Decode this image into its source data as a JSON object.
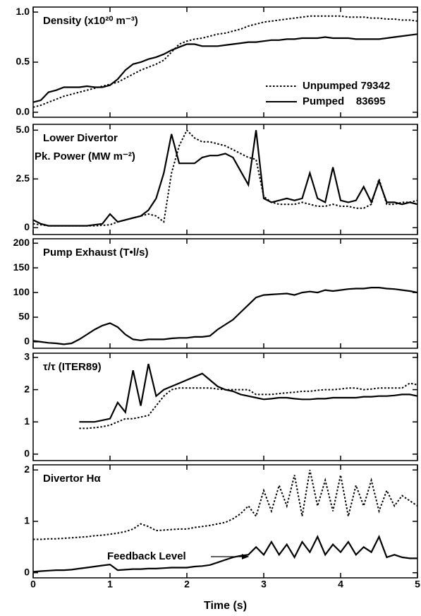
{
  "chart_data": [
    {
      "type": "line",
      "title": "Density (x10²⁰ m⁻³)",
      "legend": "lower right",
      "xlim": [
        0,
        5
      ],
      "xticks": [
        0,
        1,
        2,
        3,
        4,
        5
      ],
      "ylim": [
        -0.05,
        1.05
      ],
      "yticks": [
        {
          "value": 0,
          "label": "0.0"
        },
        {
          "value": 0.5,
          "label": "0.5"
        },
        {
          "value": 1,
          "label": "1.0"
        }
      ],
      "x": [
        0,
        0.1,
        0.2,
        0.3,
        0.4,
        0.5,
        0.6,
        0.7,
        0.8,
        0.9,
        1,
        1.1,
        1.2,
        1.3,
        1.4,
        1.5,
        1.6,
        1.7,
        1.8,
        1.9,
        2,
        2.1,
        2.2,
        2.3,
        2.4,
        2.5,
        2.6,
        2.7,
        2.8,
        2.9,
        3,
        3.1,
        3.2,
        3.3,
        3.4,
        3.5,
        3.6,
        3.7,
        3.8,
        3.9,
        4,
        4.1,
        4.2,
        4.3,
        4.4,
        4.5,
        4.6,
        4.7,
        4.8,
        4.9,
        5
      ],
      "series": [
        {
          "name": "Unpumped 79342",
          "color": "#000000",
          "style": "dotted",
          "values": [
            0.05,
            0.07,
            0.1,
            0.13,
            0.16,
            0.18,
            0.2,
            0.22,
            0.24,
            0.26,
            0.28,
            0.3,
            0.34,
            0.38,
            0.42,
            0.45,
            0.48,
            0.52,
            0.6,
            0.68,
            0.71,
            0.73,
            0.74,
            0.76,
            0.78,
            0.79,
            0.81,
            0.83,
            0.86,
            0.88,
            0.9,
            0.91,
            0.92,
            0.93,
            0.94,
            0.95,
            0.96,
            0.96,
            0.96,
            0.96,
            0.96,
            0.95,
            0.95,
            0.95,
            0.94,
            0.94,
            0.93,
            0.93,
            0.92,
            0.92,
            0.91
          ]
        },
        {
          "name": "Pumped    83695",
          "color": "#000000",
          "style": "solid",
          "values": [
            0.1,
            0.12,
            0.2,
            0.22,
            0.25,
            0.25,
            0.25,
            0.26,
            0.25,
            0.25,
            0.27,
            0.33,
            0.42,
            0.48,
            0.5,
            0.53,
            0.55,
            0.58,
            0.62,
            0.65,
            0.68,
            0.68,
            0.66,
            0.66,
            0.66,
            0.67,
            0.68,
            0.69,
            0.7,
            0.7,
            0.71,
            0.72,
            0.72,
            0.73,
            0.73,
            0.74,
            0.74,
            0.74,
            0.75,
            0.74,
            0.74,
            0.74,
            0.73,
            0.73,
            0.73,
            0.73,
            0.74,
            0.75,
            0.76,
            0.77,
            0.78
          ]
        }
      ]
    },
    {
      "type": "line",
      "title": "Lower Divertor",
      "subtitle": "Pk. Power (MW m⁻²)",
      "xlim": [
        0,
        5
      ],
      "xticks": [
        0,
        1,
        2,
        3,
        4,
        5
      ],
      "ylim": [
        -0.35,
        5.3
      ],
      "yticks": [
        0,
        2.5,
        {
          "value": 5,
          "label": "5.0"
        }
      ],
      "x": [
        0,
        0.1,
        0.2,
        0.3,
        0.4,
        0.5,
        0.6,
        0.7,
        0.8,
        0.9,
        1,
        1.1,
        1.2,
        1.3,
        1.4,
        1.5,
        1.6,
        1.7,
        1.8,
        1.9,
        2,
        2.1,
        2.2,
        2.3,
        2.4,
        2.5,
        2.6,
        2.7,
        2.8,
        2.9,
        3,
        3.1,
        3.2,
        3.3,
        3.4,
        3.5,
        3.6,
        3.7,
        3.8,
        3.9,
        4,
        4.1,
        4.2,
        4.3,
        4.4,
        4.5,
        4.6,
        4.7,
        4.8,
        4.9,
        5
      ],
      "series": [
        {
          "color": "#000000",
          "style": "dotted",
          "values": [
            0.2,
            0.15,
            0.1,
            0.1,
            0.1,
            0.1,
            0.1,
            0.1,
            0.1,
            0.12,
            0.15,
            0.3,
            0.4,
            0.5,
            0.6,
            0.7,
            0.6,
            0.3,
            2.8,
            4.2,
            5.0,
            4.6,
            4.4,
            4.4,
            4.3,
            4.2,
            4.0,
            3.8,
            3.6,
            3.5,
            1.6,
            1.3,
            1.2,
            1.2,
            1.2,
            1.3,
            1.2,
            1.1,
            1.1,
            1.2,
            1.1,
            1.1,
            1.0,
            1.0,
            1.2,
            2.5,
            1.2,
            1.2,
            1.3,
            1.3,
            1.4
          ]
        },
        {
          "color": "#000000",
          "style": "solid",
          "values": [
            0.4,
            0.2,
            0.1,
            0.1,
            0.1,
            0.1,
            0.1,
            0.1,
            0.15,
            0.2,
            0.7,
            0.3,
            0.4,
            0.5,
            0.6,
            0.9,
            1.5,
            2.8,
            4.8,
            3.3,
            3.3,
            3.3,
            3.6,
            3.7,
            3.7,
            3.8,
            3.6,
            2.9,
            2.2,
            5.0,
            1.5,
            1.3,
            1.4,
            1.5,
            1.4,
            1.5,
            2.8,
            1.5,
            1.3,
            3.1,
            1.4,
            1.3,
            1.4,
            2.1,
            1.3,
            2.4,
            1.3,
            1.3,
            1.2,
            1.3,
            1.2
          ]
        }
      ]
    },
    {
      "type": "line",
      "title": "Pump Exhaust (T•l/s)",
      "xlim": [
        0,
        5
      ],
      "xticks": [
        0,
        1,
        2,
        3,
        4,
        5
      ],
      "ylim": [
        -13,
        209
      ],
      "yticks": [
        0,
        50,
        100,
        150,
        200
      ],
      "x": [
        0,
        0.1,
        0.2,
        0.3,
        0.4,
        0.5,
        0.6,
        0.7,
        0.8,
        0.9,
        1,
        1.1,
        1.2,
        1.3,
        1.4,
        1.5,
        1.6,
        1.7,
        1.8,
        1.9,
        2,
        2.1,
        2.2,
        2.3,
        2.4,
        2.5,
        2.6,
        2.7,
        2.8,
        2.9,
        3,
        3.1,
        3.2,
        3.3,
        3.4,
        3.5,
        3.6,
        3.7,
        3.8,
        3.9,
        4,
        4.1,
        4.2,
        4.3,
        4.4,
        4.5,
        4.6,
        4.7,
        4.8,
        4.9,
        5
      ],
      "series": [
        {
          "color": "#000000",
          "style": "solid",
          "values": [
            2,
            0,
            -2,
            -3,
            -5,
            -3,
            5,
            15,
            25,
            33,
            38,
            30,
            15,
            5,
            3,
            5,
            5,
            5,
            7,
            8,
            8,
            10,
            10,
            12,
            25,
            35,
            45,
            60,
            75,
            90,
            95,
            96,
            97,
            98,
            95,
            100,
            102,
            100,
            105,
            103,
            105,
            107,
            108,
            108,
            110,
            110,
            108,
            107,
            105,
            103,
            100
          ]
        }
      ]
    },
    {
      "type": "line",
      "title": "τ/τ (ITER89)",
      "xlim": [
        0,
        5
      ],
      "xticks": [
        0,
        1,
        2,
        3,
        4,
        5
      ],
      "ylim": [
        -0.2,
        3.13
      ],
      "yticks": [
        0,
        1,
        2,
        3
      ],
      "x": [
        0,
        0.1,
        0.2,
        0.3,
        0.4,
        0.5,
        0.6,
        0.7,
        0.8,
        0.9,
        1,
        1.1,
        1.2,
        1.3,
        1.4,
        1.5,
        1.6,
        1.7,
        1.8,
        1.9,
        2,
        2.1,
        2.2,
        2.3,
        2.4,
        2.5,
        2.6,
        2.7,
        2.8,
        2.9,
        3,
        3.1,
        3.2,
        3.3,
        3.4,
        3.5,
        3.6,
        3.7,
        3.8,
        3.9,
        4,
        4.1,
        4.2,
        4.3,
        4.4,
        4.5,
        4.6,
        4.7,
        4.8,
        4.9,
        5
      ],
      "series": [
        {
          "color": "#000000",
          "style": "dotted",
          "values": [
            null,
            null,
            null,
            null,
            null,
            null,
            0.8,
            0.8,
            0.82,
            0.85,
            0.9,
            1.0,
            1.1,
            1.1,
            1.15,
            1.2,
            1.5,
            1.8,
            2.0,
            2.05,
            2.05,
            2.05,
            2.05,
            2.05,
            2.02,
            2.0,
            2.0,
            2.0,
            2.0,
            1.85,
            1.85,
            1.85,
            1.88,
            1.9,
            1.92,
            1.95,
            1.95,
            1.98,
            2.0,
            2.0,
            2.02,
            2.05,
            2.05,
            2.0,
            2.02,
            2.05,
            2.05,
            2.05,
            2.05,
            2.2,
            2.15
          ]
        },
        {
          "color": "#000000",
          "style": "solid",
          "values": [
            null,
            null,
            null,
            null,
            null,
            null,
            1.0,
            1.0,
            1.0,
            1.05,
            1.1,
            1.6,
            1.3,
            2.6,
            1.5,
            2.8,
            1.8,
            2.0,
            2.1,
            2.2,
            2.3,
            2.4,
            2.5,
            2.3,
            2.1,
            2.0,
            1.95,
            1.85,
            1.8,
            1.75,
            1.7,
            1.72,
            1.75,
            1.75,
            1.72,
            1.7,
            1.7,
            1.72,
            1.72,
            1.75,
            1.75,
            1.75,
            1.75,
            1.78,
            1.78,
            1.8,
            1.8,
            1.82,
            1.85,
            1.85,
            1.8
          ]
        }
      ]
    },
    {
      "type": "line",
      "title": "Divertor Hα",
      "annotation": "Feedback Level",
      "xlabel": "Time (s)",
      "xlim": [
        0,
        5
      ],
      "xticks": [
        0,
        1,
        2,
        3,
        4,
        5
      ],
      "ylim": [
        -0.1,
        2.1
      ],
      "yticks": [
        0,
        1,
        2
      ],
      "x": [
        0,
        0.1,
        0.2,
        0.3,
        0.4,
        0.5,
        0.6,
        0.7,
        0.8,
        0.9,
        1,
        1.1,
        1.2,
        1.3,
        1.4,
        1.5,
        1.6,
        1.7,
        1.8,
        1.9,
        2,
        2.1,
        2.2,
        2.3,
        2.4,
        2.5,
        2.6,
        2.7,
        2.8,
        2.9,
        3,
        3.1,
        3.2,
        3.3,
        3.4,
        3.5,
        3.6,
        3.7,
        3.8,
        3.9,
        4,
        4.1,
        4.2,
        4.3,
        4.4,
        4.5,
        4.6,
        4.7,
        4.8,
        4.9,
        5
      ],
      "series": [
        {
          "color": "#000000",
          "style": "dotted",
          "values": [
            0.65,
            0.65,
            0.66,
            0.66,
            0.67,
            0.68,
            0.69,
            0.7,
            0.72,
            0.73,
            0.75,
            0.77,
            0.8,
            0.85,
            0.95,
            0.9,
            0.82,
            0.83,
            0.84,
            0.85,
            0.85,
            0.88,
            0.9,
            0.92,
            0.95,
            0.98,
            1.05,
            1.15,
            1.3,
            1.1,
            1.6,
            1.2,
            1.7,
            1.3,
            1.9,
            1.1,
            2.0,
            1.3,
            1.8,
            1.2,
            1.9,
            1.1,
            1.7,
            1.3,
            1.8,
            1.2,
            1.6,
            1.3,
            1.5,
            1.4,
            1.3
          ]
        },
        {
          "color": "#000000",
          "style": "solid",
          "values": [
            0.02,
            0.03,
            0.04,
            0.05,
            0.05,
            0.06,
            0.08,
            0.1,
            0.12,
            0.14,
            0.16,
            0.05,
            0.06,
            0.07,
            0.07,
            0.08,
            0.08,
            0.09,
            0.1,
            0.1,
            0.1,
            0.12,
            0.13,
            0.15,
            0.2,
            0.25,
            0.3,
            0.33,
            0.35,
            0.5,
            0.35,
            0.6,
            0.35,
            0.55,
            0.3,
            0.6,
            0.4,
            0.7,
            0.35,
            0.55,
            0.4,
            0.6,
            0.35,
            0.5,
            0.4,
            0.7,
            0.3,
            0.35,
            0.3,
            0.28,
            0.28
          ]
        }
      ]
    }
  ]
}
